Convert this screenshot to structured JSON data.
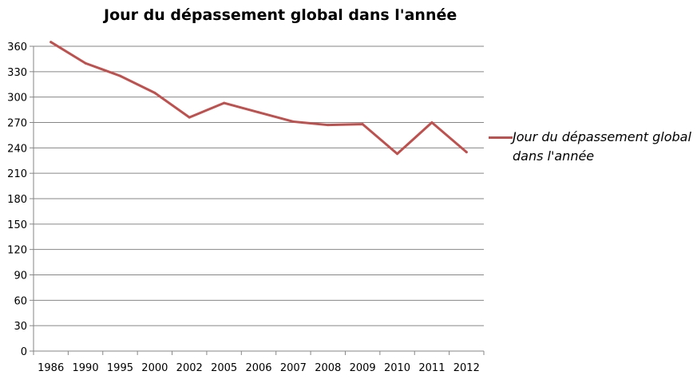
{
  "chart_data": {
    "type": "line",
    "title": "Jour du dépassement global dans l'année",
    "xlabel": "",
    "ylabel": "",
    "categories": [
      "1986",
      "1990",
      "1995",
      "2000",
      "2002",
      "2005",
      "2006",
      "2007",
      "2008",
      "2009",
      "2010",
      "2011",
      "2012"
    ],
    "series": [
      {
        "name": "Jour du dépassement global dans l'année",
        "color": "#C0504D",
        "values": [
          365,
          340,
          325,
          305,
          276,
          293,
          282,
          271,
          267,
          268,
          233,
          270,
          235
        ]
      }
    ],
    "ylim": [
      0,
      360
    ],
    "yticks": [
      0,
      30,
      60,
      90,
      120,
      150,
      180,
      210,
      240,
      270,
      300,
      330,
      360
    ],
    "grid": true,
    "legend_position": "right"
  }
}
